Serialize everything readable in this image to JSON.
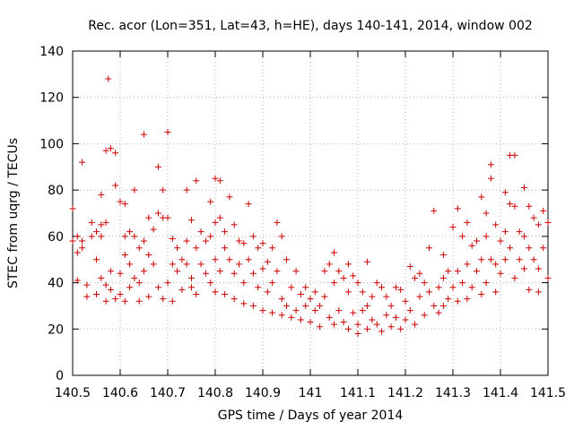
{
  "chart_data": {
    "type": "scatter",
    "title": "Rec. acor (Lon=351, Lat=43, h=HE), days 140-141, 2014, window 002",
    "xlabel": "GPS time / Days of year 2014",
    "ylabel": "STEC from uqrg / TECUs",
    "xlim": [
      140.5,
      141.5
    ],
    "ylim": [
      0,
      140
    ],
    "xticks": [
      140.5,
      140.6,
      140.7,
      140.8,
      140.9,
      141,
      141.1,
      141.2,
      141.3,
      141.4,
      141.5
    ],
    "xtick_labels": [
      "140.5",
      "140.6",
      "140.7",
      "140.8",
      "140.9",
      "141",
      "141.1",
      "141.2",
      "141.3",
      "141.4",
      "141.5"
    ],
    "yticks": [
      0,
      20,
      40,
      60,
      80,
      100,
      120,
      140
    ],
    "ytick_labels": [
      "0",
      "20",
      "40",
      "60",
      "80",
      "100",
      "120",
      "140"
    ],
    "grid": true,
    "marker": "+",
    "color": "#cc0000",
    "series": [
      {
        "name": "STEC",
        "points": [
          [
            140.5,
            72
          ],
          [
            140.5,
            58
          ],
          [
            140.51,
            60
          ],
          [
            140.51,
            53
          ],
          [
            140.51,
            41
          ],
          [
            140.52,
            92
          ],
          [
            140.52,
            58
          ],
          [
            140.52,
            55
          ],
          [
            140.53,
            34
          ],
          [
            140.53,
            39
          ],
          [
            140.54,
            66
          ],
          [
            140.54,
            60
          ],
          [
            140.55,
            62
          ],
          [
            140.55,
            50
          ],
          [
            140.55,
            35
          ],
          [
            140.56,
            78
          ],
          [
            140.56,
            65
          ],
          [
            140.56,
            60
          ],
          [
            140.56,
            42
          ],
          [
            140.57,
            97
          ],
          [
            140.57,
            66
          ],
          [
            140.57,
            39
          ],
          [
            140.57,
            32
          ],
          [
            140.575,
            128
          ],
          [
            140.58,
            98
          ],
          [
            140.58,
            45
          ],
          [
            140.58,
            37
          ],
          [
            140.59,
            96
          ],
          [
            140.59,
            82
          ],
          [
            140.59,
            33
          ],
          [
            140.6,
            75
          ],
          [
            140.6,
            44
          ],
          [
            140.6,
            35
          ],
          [
            140.61,
            74
          ],
          [
            140.61,
            60
          ],
          [
            140.61,
            52
          ],
          [
            140.61,
            32
          ],
          [
            140.62,
            62
          ],
          [
            140.62,
            48
          ],
          [
            140.62,
            38
          ],
          [
            140.63,
            80
          ],
          [
            140.63,
            60
          ],
          [
            140.63,
            42
          ],
          [
            140.64,
            55
          ],
          [
            140.64,
            40
          ],
          [
            140.64,
            32
          ],
          [
            140.65,
            104
          ],
          [
            140.65,
            58
          ],
          [
            140.65,
            45
          ],
          [
            140.66,
            68
          ],
          [
            140.66,
            52
          ],
          [
            140.66,
            34
          ],
          [
            140.67,
            63
          ],
          [
            140.67,
            48
          ],
          [
            140.68,
            90
          ],
          [
            140.68,
            70
          ],
          [
            140.68,
            38
          ],
          [
            140.69,
            80
          ],
          [
            140.69,
            68
          ],
          [
            140.69,
            33
          ],
          [
            140.7,
            105
          ],
          [
            140.7,
            68
          ],
          [
            140.7,
            40
          ],
          [
            140.71,
            59
          ],
          [
            140.71,
            48
          ],
          [
            140.71,
            32
          ],
          [
            140.72,
            55
          ],
          [
            140.72,
            45
          ],
          [
            140.73,
            50
          ],
          [
            140.73,
            37
          ],
          [
            140.74,
            80
          ],
          [
            140.74,
            58
          ],
          [
            140.74,
            48
          ],
          [
            140.75,
            67
          ],
          [
            140.75,
            42
          ],
          [
            140.75,
            38
          ],
          [
            140.76,
            84
          ],
          [
            140.76,
            55
          ],
          [
            140.76,
            35
          ],
          [
            140.77,
            62
          ],
          [
            140.77,
            48
          ],
          [
            140.78,
            58
          ],
          [
            140.78,
            44
          ],
          [
            140.79,
            75
          ],
          [
            140.79,
            60
          ],
          [
            140.79,
            40
          ],
          [
            140.8,
            85
          ],
          [
            140.8,
            66
          ],
          [
            140.8,
            50
          ],
          [
            140.8,
            36
          ],
          [
            140.81,
            84
          ],
          [
            140.81,
            68
          ],
          [
            140.81,
            45
          ],
          [
            140.82,
            62
          ],
          [
            140.82,
            55
          ],
          [
            140.82,
            35
          ],
          [
            140.83,
            77
          ],
          [
            140.83,
            50
          ],
          [
            140.84,
            65
          ],
          [
            140.84,
            44
          ],
          [
            140.84,
            33
          ],
          [
            140.85,
            58
          ],
          [
            140.85,
            48
          ],
          [
            140.86,
            57
          ],
          [
            140.86,
            40
          ],
          [
            140.86,
            31
          ],
          [
            140.87,
            74
          ],
          [
            140.87,
            50
          ],
          [
            140.88,
            60
          ],
          [
            140.88,
            44
          ],
          [
            140.88,
            30
          ],
          [
            140.89,
            55
          ],
          [
            140.89,
            38
          ],
          [
            140.9,
            57
          ],
          [
            140.9,
            46
          ],
          [
            140.9,
            28
          ],
          [
            140.91,
            49
          ],
          [
            140.91,
            36
          ],
          [
            140.92,
            55
          ],
          [
            140.92,
            40
          ],
          [
            140.92,
            27
          ],
          [
            140.93,
            66
          ],
          [
            140.93,
            45
          ],
          [
            140.94,
            60
          ],
          [
            140.94,
            33
          ],
          [
            140.94,
            26
          ],
          [
            140.95,
            50
          ],
          [
            140.95,
            30
          ],
          [
            140.96,
            38
          ],
          [
            140.96,
            25
          ],
          [
            140.97,
            45
          ],
          [
            140.97,
            28
          ],
          [
            140.98,
            35
          ],
          [
            140.98,
            24
          ],
          [
            140.99,
            38
          ],
          [
            140.99,
            30
          ],
          [
            141.0,
            33
          ],
          [
            141.0,
            23
          ],
          [
            141.01,
            36
          ],
          [
            141.01,
            28
          ],
          [
            141.02,
            30
          ],
          [
            141.02,
            21
          ],
          [
            141.03,
            45
          ],
          [
            141.03,
            34
          ],
          [
            141.04,
            48
          ],
          [
            141.04,
            25
          ],
          [
            141.05,
            53
          ],
          [
            141.05,
            40
          ],
          [
            141.05,
            22
          ],
          [
            141.06,
            45
          ],
          [
            141.06,
            28
          ],
          [
            141.07,
            42
          ],
          [
            141.07,
            23
          ],
          [
            141.08,
            48
          ],
          [
            141.08,
            36
          ],
          [
            141.08,
            20
          ],
          [
            141.09,
            43
          ],
          [
            141.09,
            27
          ],
          [
            141.1,
            40
          ],
          [
            141.1,
            22
          ],
          [
            141.1,
            18
          ],
          [
            141.11,
            36
          ],
          [
            141.11,
            28
          ],
          [
            141.12,
            49
          ],
          [
            141.12,
            30
          ],
          [
            141.12,
            20
          ],
          [
            141.13,
            34
          ],
          [
            141.13,
            24
          ],
          [
            141.14,
            40
          ],
          [
            141.14,
            22
          ],
          [
            141.15,
            38
          ],
          [
            141.15,
            19
          ],
          [
            141.16,
            34
          ],
          [
            141.16,
            26
          ],
          [
            141.17,
            30
          ],
          [
            141.17,
            21
          ],
          [
            141.18,
            38
          ],
          [
            141.18,
            25
          ],
          [
            141.19,
            37
          ],
          [
            141.19,
            20
          ],
          [
            141.2,
            32
          ],
          [
            141.2,
            24
          ],
          [
            141.21,
            47
          ],
          [
            141.21,
            28
          ],
          [
            141.22,
            42
          ],
          [
            141.22,
            22
          ],
          [
            141.23,
            44
          ],
          [
            141.23,
            34
          ],
          [
            141.24,
            40
          ],
          [
            141.24,
            26
          ],
          [
            141.25,
            55
          ],
          [
            141.25,
            36
          ],
          [
            141.26,
            71
          ],
          [
            141.26,
            30
          ],
          [
            141.27,
            38
          ],
          [
            141.27,
            27
          ],
          [
            141.28,
            52
          ],
          [
            141.28,
            42
          ],
          [
            141.28,
            30
          ],
          [
            141.29,
            45
          ],
          [
            141.29,
            33
          ],
          [
            141.3,
            64
          ],
          [
            141.3,
            38
          ],
          [
            141.31,
            72
          ],
          [
            141.31,
            45
          ],
          [
            141.31,
            32
          ],
          [
            141.32,
            60
          ],
          [
            141.32,
            40
          ],
          [
            141.33,
            66
          ],
          [
            141.33,
            48
          ],
          [
            141.33,
            33
          ],
          [
            141.34,
            56
          ],
          [
            141.34,
            38
          ],
          [
            141.35,
            58
          ],
          [
            141.35,
            45
          ],
          [
            141.36,
            77
          ],
          [
            141.36,
            50
          ],
          [
            141.36,
            35
          ],
          [
            141.37,
            70
          ],
          [
            141.37,
            60
          ],
          [
            141.37,
            40
          ],
          [
            141.38,
            91
          ],
          [
            141.38,
            85
          ],
          [
            141.38,
            50
          ],
          [
            141.39,
            65
          ],
          [
            141.39,
            48
          ],
          [
            141.39,
            36
          ],
          [
            141.4,
            58
          ],
          [
            141.4,
            44
          ],
          [
            141.41,
            79
          ],
          [
            141.41,
            62
          ],
          [
            141.41,
            50
          ],
          [
            141.42,
            95
          ],
          [
            141.42,
            74
          ],
          [
            141.42,
            55
          ],
          [
            141.43,
            95
          ],
          [
            141.43,
            73
          ],
          [
            141.43,
            42
          ],
          [
            141.44,
            62
          ],
          [
            141.44,
            50
          ],
          [
            141.45,
            81
          ],
          [
            141.45,
            60
          ],
          [
            141.45,
            46
          ],
          [
            141.46,
            73
          ],
          [
            141.46,
            55
          ],
          [
            141.46,
            37
          ],
          [
            141.47,
            68
          ],
          [
            141.47,
            50
          ],
          [
            141.48,
            65
          ],
          [
            141.48,
            46
          ],
          [
            141.48,
            36
          ],
          [
            141.49,
            71
          ],
          [
            141.49,
            55
          ],
          [
            141.5,
            66
          ],
          [
            141.5,
            42
          ]
        ]
      }
    ]
  }
}
